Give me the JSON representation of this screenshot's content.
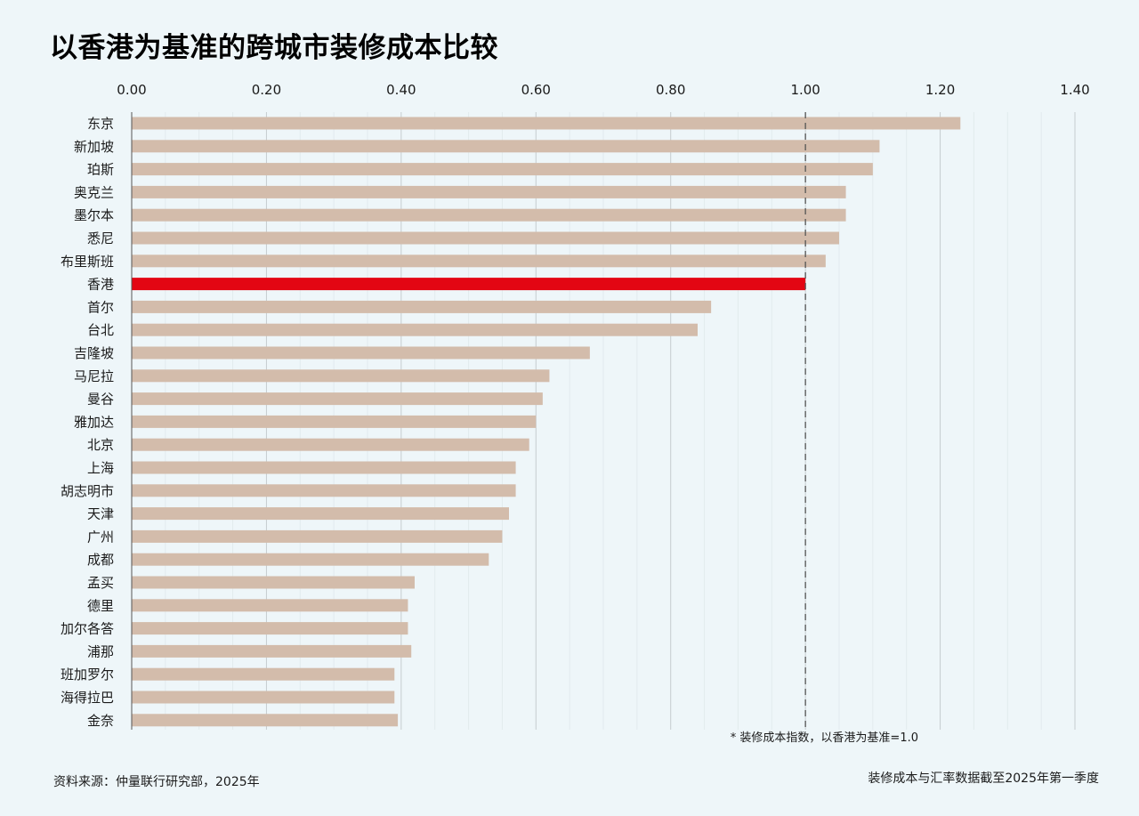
{
  "title": "以香港为基准的跨城市装修成本比较",
  "note": "* 装修成本指数，以香港为基准=1.0",
  "footer": {
    "source": "资料来源：仲量联行研究部，2025年",
    "data_date": "装修成本与汇率数据截至2025年第一季度"
  },
  "colors": {
    "bar": "#d3bcab",
    "highlight": "#e30613",
    "grid": "#c5ccd0",
    "minor_grid": "#e2ebee",
    "reference_line": "#555555",
    "background": "#eef6f9"
  },
  "chart_data": {
    "type": "bar",
    "orientation": "horizontal",
    "title": "以香港为基准的跨城市装修成本比较",
    "x_ticks": [
      "0.00",
      "0.20",
      "0.40",
      "0.60",
      "0.80",
      "1.00",
      "1.20",
      "1.40"
    ],
    "xlim": [
      0,
      1.4
    ],
    "x_axis_position": "top",
    "grid": true,
    "reference_line": 1.0,
    "highlight": "香港",
    "categories": [
      "东京",
      "新加坡",
      "珀斯",
      "奥克兰",
      "墨尔本",
      "悉尼",
      "布里斯班",
      "香港",
      "首尔",
      "台北",
      "吉隆坡",
      "马尼拉",
      "曼谷",
      "雅加达",
      "北京",
      "上海",
      "胡志明市",
      "天津",
      "广州",
      "成都",
      "孟买",
      "德里",
      "加尔各答",
      "浦那",
      "班加罗尔",
      "海得拉巴",
      "金奈"
    ],
    "values": [
      1.23,
      1.11,
      1.1,
      1.06,
      1.06,
      1.05,
      1.03,
      1.0,
      0.86,
      0.84,
      0.68,
      0.62,
      0.61,
      0.6,
      0.59,
      0.57,
      0.57,
      0.56,
      0.55,
      0.53,
      0.42,
      0.41,
      0.41,
      0.415,
      0.39,
      0.39,
      0.395
    ]
  }
}
